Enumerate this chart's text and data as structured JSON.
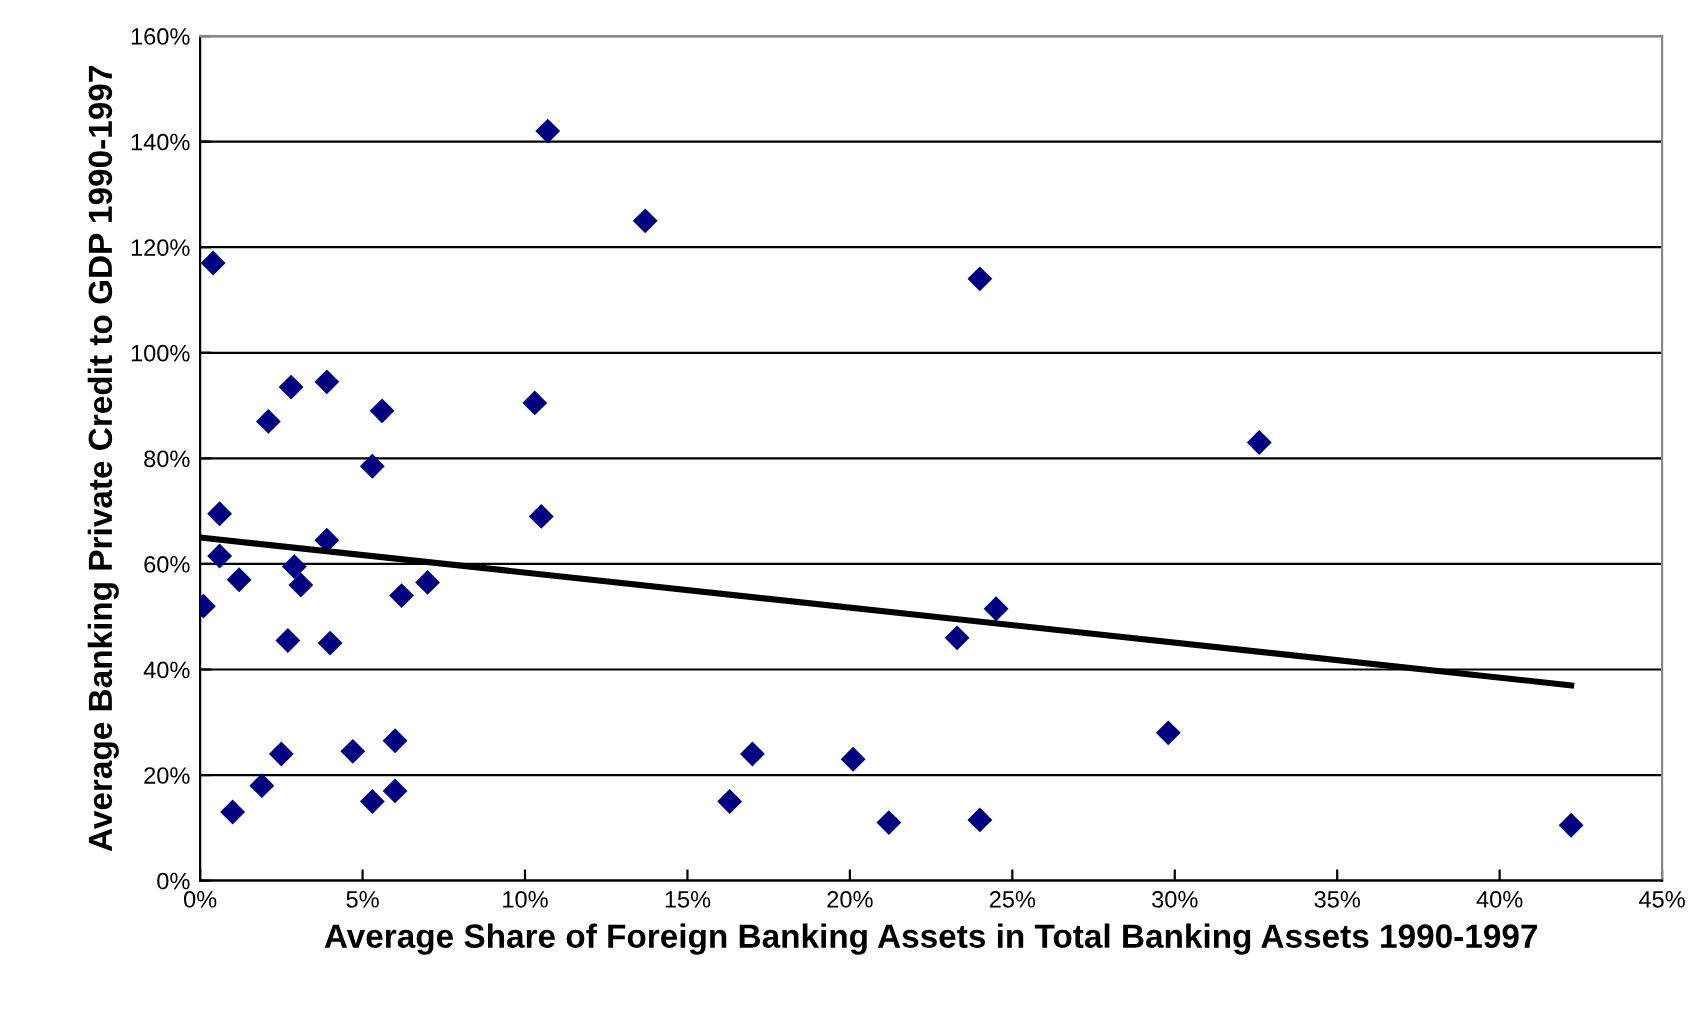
{
  "chart_data": {
    "type": "scatter",
    "xlabel": "Average Share of Foreign Banking Assets in Total Banking Assets 1990-1997",
    "ylabel": "Average Banking Private Credit to GDP 1990-1997",
    "series": [
      {
        "color": "#000080",
        "marker": "diamond",
        "x": [
          0.1,
          0.4,
          0.6,
          0.6,
          1.0,
          1.2,
          1.9,
          2.1,
          2.5,
          2.7,
          2.8,
          2.9,
          3.1,
          3.9,
          3.9,
          4.0,
          4.7,
          5.3,
          5.3,
          5.6,
          6.0,
          6.0,
          6.2,
          7.0,
          10.3,
          10.5,
          10.7,
          13.7,
          16.3,
          17.0,
          20.1,
          21.2,
          23.3,
          24.0,
          24.0,
          24.5,
          29.8,
          32.6,
          42.2
        ],
        "values": [
          52,
          117,
          69.5,
          61.5,
          13,
          57,
          18,
          87,
          24,
          45.5,
          93.5,
          59.5,
          56,
          94.5,
          64.5,
          45,
          24.5,
          15,
          78.5,
          89,
          17,
          26.5,
          54,
          56.5,
          90.5,
          69,
          142,
          125,
          15,
          24,
          23,
          11,
          46,
          11.5,
          114,
          51.5,
          28,
          83,
          10.5
        ]
      },
      {
        "type": "line",
        "color": "#000000",
        "marker": "none",
        "x": [
          0,
          42.2
        ],
        "values": [
          65,
          37
        ]
      }
    ],
    "xlim": [
      0,
      45
    ],
    "xticks": [
      {
        "value": 0,
        "label": "0%"
      },
      {
        "value": 5,
        "label": "5%"
      },
      {
        "value": 10,
        "label": "10%"
      },
      {
        "value": 15,
        "label": "15%"
      },
      {
        "value": 20,
        "label": "20%"
      },
      {
        "value": 25,
        "label": "25%"
      },
      {
        "value": 30,
        "label": "30%"
      },
      {
        "value": 35,
        "label": "35%"
      },
      {
        "value": 40,
        "label": "40%"
      },
      {
        "value": 45,
        "label": "45%"
      }
    ],
    "ylim": [
      0,
      160
    ],
    "yticks": [
      {
        "value": 0,
        "label": "0%"
      },
      {
        "value": 20,
        "label": "20%"
      },
      {
        "value": 40,
        "label": "40%"
      },
      {
        "value": 60,
        "label": "60%"
      },
      {
        "value": 80,
        "label": "80%"
      },
      {
        "value": 100,
        "label": "100%"
      },
      {
        "value": 120,
        "label": "120%"
      },
      {
        "value": 140,
        "label": "140%"
      },
      {
        "value": 160,
        "label": "160%"
      }
    ],
    "grid": "y",
    "legend": false
  }
}
